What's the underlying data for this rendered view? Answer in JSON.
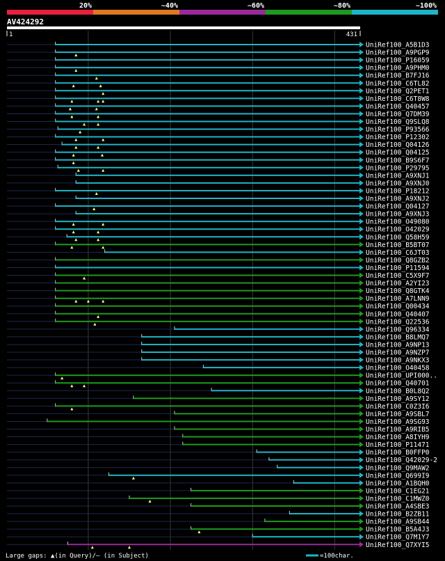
{
  "chart_data": {
    "type": "alignment-overview",
    "title": "AV424292",
    "query_range": [
      1,
      431
    ],
    "query_start_label": "1",
    "query_end_label": "431",
    "identity_legend": [
      {
        "label": "20%",
        "color": "#e8203c"
      },
      {
        "label": "~40%",
        "color": "#e07820"
      },
      {
        "label": "~60%",
        "color": "#9a2a9c"
      },
      {
        "label": "~80%",
        "color": "#1f9a1f"
      },
      {
        "label": "~100%",
        "color": "#1fb4c8"
      }
    ],
    "footer_left": "Large gaps: ▲(in Query)/– (in Subject)",
    "footer_right": "=100char.",
    "hits": [
      {
        "name": "UniRef100_A5B1D3",
        "s": 60,
        "e": 431,
        "c": "cyan",
        "q": []
      },
      {
        "name": "UniRef100_A9PGP9",
        "s": 60,
        "e": 431,
        "c": "cyan",
        "q": [
          85
        ]
      },
      {
        "name": "UniRef100_P16059",
        "s": 60,
        "e": 431,
        "c": "cyan",
        "q": []
      },
      {
        "name": "UniRef100_A9PHM0",
        "s": 60,
        "e": 431,
        "c": "cyan",
        "q": [
          85
        ]
      },
      {
        "name": "UniRef100_B7FJ16",
        "s": 60,
        "e": 431,
        "c": "cyan",
        "q": [
          110
        ]
      },
      {
        "name": "UniRef100_C6TL82",
        "s": 60,
        "e": 431,
        "c": "cyan",
        "q": [
          82,
          115
        ]
      },
      {
        "name": "UniRef100_Q2PET1",
        "s": 60,
        "e": 431,
        "c": "cyan",
        "q": [
          118
        ]
      },
      {
        "name": "UniRef100_C6T8W8",
        "s": 60,
        "e": 431,
        "c": "cyan",
        "q": [
          80,
          112,
          118
        ]
      },
      {
        "name": "UniRef100_Q40457",
        "s": 60,
        "e": 431,
        "c": "cyan",
        "q": [
          78,
          110
        ]
      },
      {
        "name": "UniRef100_Q7DM39",
        "s": 60,
        "e": 431,
        "c": "cyan",
        "q": [
          80,
          112
        ]
      },
      {
        "name": "UniRef100_Q9SLQ8",
        "s": 60,
        "e": 431,
        "c": "cyan",
        "q": [
          95,
          112
        ]
      },
      {
        "name": "UniRef100_P93566",
        "s": 63,
        "e": 431,
        "c": "cyan",
        "q": [
          90
        ]
      },
      {
        "name": "UniRef100_P12302",
        "s": 60,
        "e": 431,
        "c": "cyan",
        "q": [
          85,
          118
        ]
      },
      {
        "name": "UniRef100_Q04126",
        "s": 68,
        "e": 431,
        "c": "cyan",
        "q": [
          85,
          112
        ]
      },
      {
        "name": "UniRef100_Q04125",
        "s": 60,
        "e": 431,
        "c": "cyan",
        "q": [
          82,
          117
        ]
      },
      {
        "name": "UniRef100_B9S6F7",
        "s": 60,
        "e": 431,
        "c": "cyan",
        "q": [
          82
        ]
      },
      {
        "name": "UniRef100_P29795",
        "s": 63,
        "e": 431,
        "c": "cyan",
        "q": [
          88,
          118
        ]
      },
      {
        "name": "UniRef100_A9XNJ1",
        "s": 85,
        "e": 431,
        "c": "cyan",
        "q": []
      },
      {
        "name": "UniRef100_A9XNJ0",
        "s": 85,
        "e": 431,
        "c": "cyan",
        "q": []
      },
      {
        "name": "UniRef100_P18212",
        "s": 60,
        "e": 431,
        "c": "cyan",
        "q": [
          110
        ]
      },
      {
        "name": "UniRef100_A9XNJ2",
        "s": 85,
        "e": 431,
        "c": "cyan",
        "q": []
      },
      {
        "name": "UniRef100_Q04127",
        "s": 60,
        "e": 431,
        "c": "cyan",
        "q": [
          107
        ]
      },
      {
        "name": "UniRef100_A9XNJ3",
        "s": 85,
        "e": 431,
        "c": "cyan",
        "q": []
      },
      {
        "name": "UniRef100_O49080",
        "s": 60,
        "e": 431,
        "c": "cyan",
        "q": [
          82,
          118
        ]
      },
      {
        "name": "UniRef100_O42029",
        "s": 60,
        "e": 431,
        "c": "cyan",
        "q": [
          82,
          112
        ]
      },
      {
        "name": "UniRef100_Q58H59",
        "s": 74,
        "e": 431,
        "c": "cyan",
        "q": [
          85,
          112
        ]
      },
      {
        "name": "UniRef100_B5BT07",
        "s": 60,
        "e": 431,
        "c": "green",
        "q": [
          80,
          118
        ]
      },
      {
        "name": "UniRef100_C6JT03",
        "s": 120,
        "e": 431,
        "c": "cyan",
        "q": []
      },
      {
        "name": "UniRef100_Q8GZB2",
        "s": 60,
        "e": 431,
        "c": "green",
        "q": []
      },
      {
        "name": "UniRef100_P11594",
        "s": 60,
        "e": 431,
        "c": "cyan",
        "q": []
      },
      {
        "name": "UniRef100_C5X9F7",
        "s": 60,
        "e": 431,
        "c": "green",
        "q": [
          95
        ]
      },
      {
        "name": "UniRef100_A2YI23",
        "s": 60,
        "e": 431,
        "c": "green",
        "q": []
      },
      {
        "name": "UniRef100_Q8GTK4",
        "s": 60,
        "e": 431,
        "c": "green",
        "q": []
      },
      {
        "name": "UniRef100_A7LNN9",
        "s": 60,
        "e": 431,
        "c": "green",
        "q": [
          85,
          100,
          118
        ]
      },
      {
        "name": "UniRef100_Q00434",
        "s": 60,
        "e": 431,
        "c": "green",
        "q": []
      },
      {
        "name": "UniRef100_Q40407",
        "s": 60,
        "e": 431,
        "c": "green",
        "q": [
          112
        ]
      },
      {
        "name": "UniRef100_Q22536",
        "s": 60,
        "e": 431,
        "c": "green",
        "q": [
          108
        ]
      },
      {
        "name": "UniRef100_Q96334",
        "s": 205,
        "e": 431,
        "c": "cyan",
        "q": []
      },
      {
        "name": "UniRef100_B8LMQ7",
        "s": 165,
        "e": 431,
        "c": "cyan",
        "q": []
      },
      {
        "name": "UniRef100_A9NP13",
        "s": 165,
        "e": 431,
        "c": "cyan",
        "q": []
      },
      {
        "name": "UniRef100_A9NZP7",
        "s": 165,
        "e": 431,
        "c": "cyan",
        "q": []
      },
      {
        "name": "UniRef100_A9NKX3",
        "s": 165,
        "e": 431,
        "c": "cyan",
        "q": []
      },
      {
        "name": "UniRef100_O40458",
        "s": 240,
        "e": 431,
        "c": "cyan",
        "q": []
      },
      {
        "name": "UniRef100_UPI000..",
        "s": 60,
        "e": 431,
        "c": "green",
        "q": [
          68
        ]
      },
      {
        "name": "UniRef100_Q40701",
        "s": 60,
        "e": 431,
        "c": "green",
        "q": [
          80,
          95
        ]
      },
      {
        "name": "UniRef100_B0L8Q2",
        "s": 250,
        "e": 431,
        "c": "cyan",
        "q": []
      },
      {
        "name": "UniRef100_A9SY12",
        "s": 155,
        "e": 431,
        "c": "green",
        "q": []
      },
      {
        "name": "UniRef100_C0Z3I6",
        "s": 60,
        "e": 431,
        "c": "green",
        "q": [
          80
        ]
      },
      {
        "name": "UniRef100_A9SBL7",
        "s": 205,
        "e": 431,
        "c": "green",
        "q": []
      },
      {
        "name": "UniRef100_A9SG93",
        "s": 50,
        "e": 431,
        "c": "green",
        "q": []
      },
      {
        "name": "UniRef100_A9RIB5",
        "s": 205,
        "e": 431,
        "c": "green",
        "q": []
      },
      {
        "name": "UniRef100_A8IYH9",
        "s": 215,
        "e": 431,
        "c": "green",
        "q": []
      },
      {
        "name": "UniRef100_P11471",
        "s": 215,
        "e": 431,
        "c": "green",
        "q": []
      },
      {
        "name": "UniRef100_B0FFP0",
        "s": 305,
        "e": 431,
        "c": "cyan",
        "q": []
      },
      {
        "name": "UniRef100_Q42029-2",
        "s": 320,
        "e": 431,
        "c": "cyan",
        "q": []
      },
      {
        "name": "UniRef100_Q9MAW2",
        "s": 330,
        "e": 431,
        "c": "cyan",
        "q": []
      },
      {
        "name": "UniRef100_Q699I9",
        "s": 125,
        "e": 431,
        "c": "cyan",
        "q": [
          155
        ]
      },
      {
        "name": "UniRef100_A1BQH0",
        "s": 350,
        "e": 431,
        "c": "cyan",
        "q": []
      },
      {
        "name": "UniRef100_C1EG21",
        "s": 225,
        "e": 431,
        "c": "green",
        "q": []
      },
      {
        "name": "UniRef100_C1MWZ0",
        "s": 150,
        "e": 431,
        "c": "green",
        "q": [
          175
        ]
      },
      {
        "name": "UniRef100_A4SBE3",
        "s": 225,
        "e": 431,
        "c": "green",
        "q": []
      },
      {
        "name": "UniRef100_B2ZB11",
        "s": 345,
        "e": 431,
        "c": "cyan",
        "q": []
      },
      {
        "name": "UniRef100_A9SB44",
        "s": 315,
        "e": 431,
        "c": "green",
        "q": []
      },
      {
        "name": "UniRef100_B5A4J3",
        "s": 225,
        "e": 431,
        "c": "green",
        "q": [
          235
        ]
      },
      {
        "name": "UniRef100_Q7M1Y7",
        "s": 300,
        "e": 431,
        "c": "cyan",
        "q": []
      },
      {
        "name": "UniRef100_Q7XYI5",
        "s": 75,
        "e": 431,
        "c": "purple",
        "q": [
          105,
          150
        ]
      }
    ]
  }
}
